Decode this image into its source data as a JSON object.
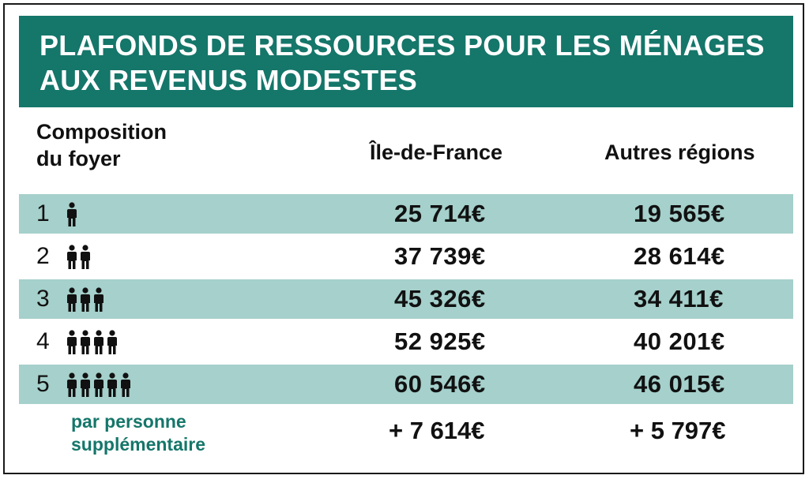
{
  "title": {
    "line1": "PLAFONDS DE RESSOURCES POUR LES MÉNAGES",
    "line2": "AUX REVENUS MODESTES"
  },
  "columns": {
    "composition_line1": "Composition",
    "composition_line2": "du foyer",
    "idf": "Île-de-France",
    "other": "Autres régions"
  },
  "rows": [
    {
      "size": "1",
      "people": 1,
      "idf": "25 714€",
      "other": "19 565€"
    },
    {
      "size": "2",
      "people": 2,
      "idf": "37 739€",
      "other": "28 614€"
    },
    {
      "size": "3",
      "people": 3,
      "idf": "45 326€",
      "other": "34 411€"
    },
    {
      "size": "4",
      "people": 4,
      "idf": "52 925€",
      "other": "40 201€"
    },
    {
      "size": "5",
      "people": 5,
      "idf": "60 546€",
      "other": "46 015€"
    }
  ],
  "extra": {
    "label_line1": "par personne",
    "label_line2": "supplémentaire",
    "idf": "+ 7 614€",
    "other": "+ 5 797€"
  },
  "colors": {
    "banner": "#15766a",
    "row_shade": "#a5d0cb",
    "accent_text": "#15766a"
  },
  "icons": {
    "person": "person-icon"
  }
}
